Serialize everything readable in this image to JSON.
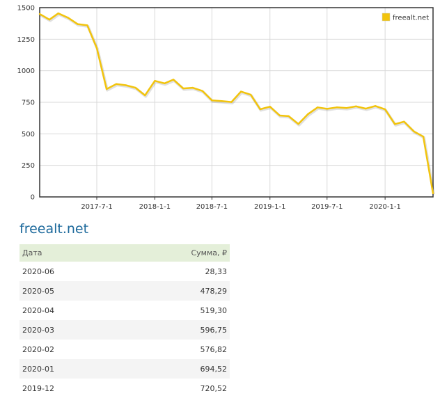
{
  "chart_data": {
    "type": "line",
    "series": [
      {
        "name": "freealt.net",
        "color": "#f2c40d",
        "points": [
          [
            "2017-01",
            1450
          ],
          [
            "2017-02",
            1405
          ],
          [
            "2017-03",
            1455
          ],
          [
            "2017-04",
            1420
          ],
          [
            "2017-05",
            1370
          ],
          [
            "2017-06",
            1360
          ],
          [
            "2017-07",
            1180
          ],
          [
            "2017-08",
            855
          ],
          [
            "2017-09",
            895
          ],
          [
            "2017-10",
            885
          ],
          [
            "2017-11",
            865
          ],
          [
            "2017-12",
            805
          ],
          [
            "2018-01",
            920
          ],
          [
            "2018-02",
            900
          ],
          [
            "2018-03",
            930
          ],
          [
            "2018-04",
            860
          ],
          [
            "2018-05",
            865
          ],
          [
            "2018-06",
            840
          ],
          [
            "2018-07",
            765
          ],
          [
            "2018-08",
            760
          ],
          [
            "2018-09",
            752
          ],
          [
            "2018-10",
            835
          ],
          [
            "2018-11",
            810
          ],
          [
            "2018-12",
            695
          ],
          [
            "2019-01",
            715
          ],
          [
            "2019-02",
            645
          ],
          [
            "2019-03",
            640
          ],
          [
            "2019-04",
            578
          ],
          [
            "2019-05",
            655
          ],
          [
            "2019-06",
            710
          ],
          [
            "2019-07",
            698
          ],
          [
            "2019-08",
            710
          ],
          [
            "2019-09",
            705
          ],
          [
            "2019-10",
            718
          ],
          [
            "2019-11",
            700
          ],
          [
            "2019-12",
            720.52
          ],
          [
            "2020-01",
            694.52
          ],
          [
            "2020-02",
            576.82
          ],
          [
            "2020-03",
            596.75
          ],
          [
            "2020-04",
            519.3
          ],
          [
            "2020-05",
            478.29
          ],
          [
            "2020-06",
            28.33
          ]
        ]
      }
    ],
    "y_ticks": [
      "1500",
      "1250",
      "1000",
      "750",
      "500",
      "250",
      "0"
    ],
    "x_ticks": [
      "2017-7-1",
      "2018-1-1",
      "2018-7-1",
      "2019-1-1",
      "2019-7-1",
      "2020-1-1"
    ],
    "ylim": [
      0,
      1500
    ],
    "grid": true,
    "legend_position": "top-right"
  },
  "site_title": "freealt.net",
  "table": {
    "headers": {
      "date": "Дата",
      "sum": "Сумма, ₽"
    },
    "rows": [
      {
        "date": "2020-06",
        "sum": "28,33"
      },
      {
        "date": "2020-05",
        "sum": "478,29"
      },
      {
        "date": "2020-04",
        "sum": "519,30"
      },
      {
        "date": "2020-03",
        "sum": "596,75"
      },
      {
        "date": "2020-02",
        "sum": "576,82"
      },
      {
        "date": "2020-01",
        "sum": "694,52"
      },
      {
        "date": "2019-12",
        "sum": "720,52"
      }
    ]
  }
}
